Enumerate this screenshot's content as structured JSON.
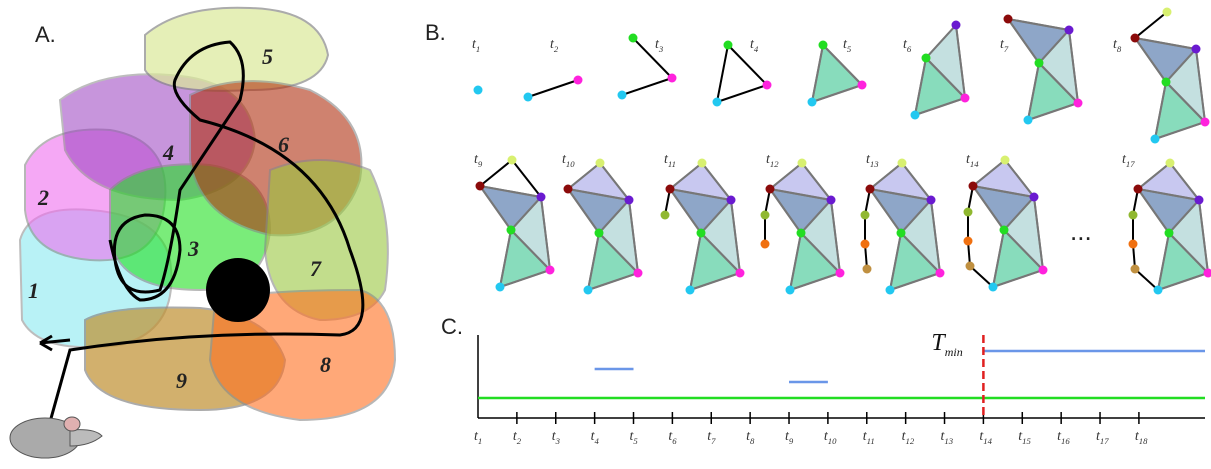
{
  "panel_a": {
    "label": "A.",
    "regions": [
      "1",
      "2",
      "3",
      "4",
      "5",
      "6",
      "7",
      "8",
      "9"
    ]
  },
  "panel_b": {
    "label": "B.",
    "ellipsis": "...",
    "frames": [
      {
        "t": "t",
        "sub": "1"
      },
      {
        "t": "t",
        "sub": "2"
      },
      {
        "t": "t",
        "sub": "3"
      },
      {
        "t": "t",
        "sub": "4"
      },
      {
        "t": "t",
        "sub": "5"
      },
      {
        "t": "t",
        "sub": "6"
      },
      {
        "t": "t",
        "sub": "7"
      },
      {
        "t": "t",
        "sub": "8"
      },
      {
        "t": "t",
        "sub": "9"
      },
      {
        "t": "t",
        "sub": "10"
      },
      {
        "t": "t",
        "sub": "11"
      },
      {
        "t": "t",
        "sub": "12"
      },
      {
        "t": "t",
        "sub": "13"
      },
      {
        "t": "t",
        "sub": "14"
      },
      {
        "t": "t",
        "sub": "17"
      }
    ]
  },
  "panel_c": {
    "label": "C.",
    "range": [
      1,
      19.7
    ],
    "ticks": [
      {
        "t": "t",
        "sub": "1"
      },
      {
        "t": "t",
        "sub": "2"
      },
      {
        "t": "t",
        "sub": "3"
      },
      {
        "t": "t",
        "sub": "4"
      },
      {
        "t": "t",
        "sub": "5"
      },
      {
        "t": "t",
        "sub": "6"
      },
      {
        "t": "t",
        "sub": "7"
      },
      {
        "t": "t",
        "sub": "8"
      },
      {
        "t": "t",
        "sub": "9"
      },
      {
        "t": "t",
        "sub": "10"
      },
      {
        "t": "t",
        "sub": "11"
      },
      {
        "t": "t",
        "sub": "12"
      },
      {
        "t": "t",
        "sub": "13"
      },
      {
        "t": "t",
        "sub": "14"
      },
      {
        "t": "t",
        "sub": "15"
      },
      {
        "t": "t",
        "sub": "16"
      },
      {
        "t": "t",
        "sub": "17"
      },
      {
        "t": "t",
        "sub": "18"
      }
    ],
    "tmin": {
      "t": "T",
      "sub": "min",
      "at": 14
    },
    "bars": [
      {
        "from": 1,
        "to": 19.7,
        "color": "#22dd22"
      },
      {
        "from": 4,
        "to": 5,
        "color": "#6a96e8"
      },
      {
        "from": 9,
        "to": 10,
        "color": "#6a96e8"
      },
      {
        "from": 14,
        "to": 19.7,
        "color": "#6a96e8"
      }
    ]
  }
}
